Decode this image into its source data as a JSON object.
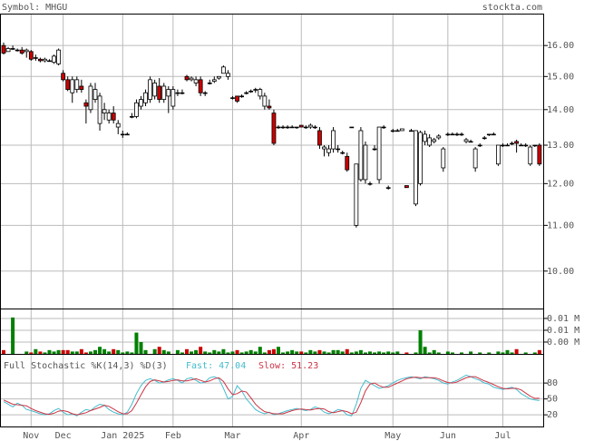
{
  "header": {
    "symbol": "Symbol: MHGU",
    "site": "stockta.com"
  },
  "chart_data": [
    {
      "type": "candlestick",
      "log_scale": true,
      "grid": true,
      "up_color": "#ffffff",
      "down_color": "#cc0000",
      "ylim": [
        9.25,
        17.1
      ],
      "yticks": [
        {
          "value": 10,
          "label": "10.00"
        },
        {
          "value": 11,
          "label": "11.00"
        },
        {
          "value": 12,
          "label": "12.00"
        },
        {
          "value": 13,
          "label": "13.00"
        },
        {
          "value": 14,
          "label": "14.00"
        },
        {
          "value": 15,
          "label": "15.00"
        },
        {
          "value": 16,
          "label": "16.00"
        }
      ],
      "categories": [
        null,
        null,
        null,
        null,
        null,
        null,
        "Nov",
        null,
        null,
        null,
        null,
        null,
        null,
        "Dec",
        null,
        null,
        null,
        null,
        null,
        null,
        null,
        null,
        null,
        null,
        null,
        null,
        "Jan 2025",
        null,
        null,
        null,
        null,
        null,
        null,
        null,
        null,
        null,
        null,
        "Feb",
        null,
        null,
        null,
        null,
        null,
        null,
        null,
        null,
        null,
        null,
        null,
        null,
        "Mar",
        null,
        null,
        null,
        null,
        null,
        null,
        null,
        null,
        null,
        null,
        null,
        null,
        null,
        null,
        "Apr",
        null,
        null,
        null,
        null,
        null,
        null,
        null,
        null,
        null,
        null,
        null,
        null,
        null,
        null,
        null,
        null,
        null,
        null,
        null,
        "May",
        null,
        null,
        null,
        null,
        null,
        null,
        null,
        null,
        null,
        null,
        null,
        "Jun",
        null,
        null,
        null,
        null,
        null,
        null,
        null,
        null,
        null,
        null,
        null,
        "Jul",
        null,
        null,
        null,
        null,
        null,
        null,
        null,
        null
      ],
      "open": [
        16.0,
        15.8,
        15.9,
        15.85,
        15.85,
        15.8,
        15.8,
        15.6,
        15.55,
        15.5,
        15.5,
        15.45,
        15.4,
        15.1,
        14.9,
        14.5,
        14.6,
        14.7,
        14.2,
        14.0,
        14.3,
        13.6,
        13.9,
        13.7,
        13.9,
        13.5,
        13.3,
        13.3,
        13.8,
        13.8,
        14.1,
        14.2,
        14.3,
        14.4,
        14.7,
        14.3,
        14.4,
        14.1,
        14.5,
        14.5,
        15.0,
        14.9,
        14.8,
        14.9,
        14.5,
        14.8,
        14.85,
        14.95,
        15.1,
        15.0,
        14.35,
        14.4,
        14.4,
        14.5,
        14.55,
        14.6,
        14.4,
        14.1,
        14.1,
        13.9,
        13.5,
        13.5,
        13.5,
        13.5,
        13.5,
        13.55,
        13.5,
        13.5,
        13.5,
        13.4,
        12.9,
        12.8,
        12.9,
        12.9,
        12.8,
        12.7,
        13.5,
        11.0,
        12.1,
        12.1,
        12.0,
        12.9,
        12.1,
        13.5,
        11.9,
        13.4,
        13.4,
        13.4,
        11.95,
        13.4,
        11.5,
        12.0,
        13.1,
        13.0,
        13.1,
        13.2,
        12.4,
        13.3,
        13.3,
        13.3,
        13.3,
        13.1,
        13.1,
        12.4,
        13.0,
        13.2,
        13.3,
        13.3,
        12.5,
        13.0,
        13.0,
        13.05,
        13.1,
        13.0,
        13.0,
        12.5,
        13.0,
        13.0
      ],
      "high": [
        16.1,
        15.95,
        16.0,
        15.9,
        15.95,
        15.9,
        15.85,
        15.7,
        15.6,
        15.6,
        15.55,
        15.7,
        15.9,
        15.2,
        15.0,
        15.0,
        15.0,
        14.9,
        14.3,
        14.8,
        14.8,
        14.5,
        14.2,
        14.0,
        14.1,
        13.7,
        13.4,
        13.35,
        13.9,
        14.3,
        14.4,
        14.6,
        15.0,
        14.9,
        14.95,
        14.8,
        14.7,
        14.7,
        14.6,
        14.6,
        15.05,
        15.0,
        15.0,
        15.0,
        14.55,
        14.9,
        15.0,
        15.0,
        15.35,
        15.2,
        14.4,
        14.4,
        14.45,
        14.55,
        14.6,
        14.65,
        14.65,
        14.5,
        14.3,
        14.0,
        13.55,
        13.55,
        13.55,
        13.55,
        13.5,
        13.55,
        13.55,
        13.6,
        13.55,
        13.5,
        13.0,
        13.0,
        13.5,
        13.0,
        12.85,
        12.8,
        13.5,
        12.5,
        13.5,
        13.1,
        12.05,
        13.0,
        13.5,
        13.55,
        11.95,
        13.45,
        13.45,
        13.45,
        11.95,
        13.45,
        13.4,
        13.4,
        13.4,
        13.3,
        13.2,
        13.3,
        12.95,
        13.35,
        13.35,
        13.35,
        13.35,
        13.2,
        13.15,
        12.95,
        13.05,
        13.25,
        13.3,
        13.35,
        13.0,
        13.05,
        13.05,
        13.1,
        13.15,
        13.05,
        13.05,
        13.0,
        13.0,
        13.05
      ],
      "low": [
        15.7,
        15.8,
        15.85,
        15.8,
        15.7,
        15.6,
        15.5,
        15.5,
        15.45,
        15.45,
        15.5,
        15.4,
        15.35,
        14.85,
        14.55,
        14.2,
        14.5,
        14.5,
        13.6,
        13.9,
        14.2,
        13.4,
        13.7,
        13.6,
        13.6,
        13.3,
        13.2,
        13.3,
        13.75,
        13.75,
        14.0,
        14.1,
        14.2,
        14.3,
        14.2,
        14.2,
        13.9,
        14.0,
        14.4,
        14.45,
        14.85,
        14.85,
        14.7,
        14.4,
        14.4,
        14.75,
        14.8,
        14.9,
        15.1,
        14.9,
        14.3,
        14.2,
        14.35,
        14.45,
        14.5,
        14.5,
        14.3,
        14.0,
        14.0,
        13.0,
        13.45,
        13.45,
        13.45,
        13.5,
        13.45,
        13.5,
        13.45,
        13.45,
        13.45,
        12.9,
        12.7,
        12.7,
        12.8,
        12.8,
        12.75,
        12.3,
        13.5,
        10.95,
        12.05,
        12.0,
        11.95,
        12.85,
        12.0,
        13.45,
        11.85,
        13.35,
        13.4,
        13.4,
        11.9,
        13.4,
        11.45,
        11.95,
        13.0,
        12.95,
        13.05,
        13.15,
        12.3,
        13.25,
        13.3,
        13.25,
        13.25,
        13.05,
        13.1,
        12.3,
        12.95,
        13.15,
        13.25,
        13.3,
        12.45,
        12.95,
        13.0,
        13.0,
        12.8,
        13.0,
        12.95,
        12.45,
        12.95,
        12.45
      ],
      "close": [
        15.75,
        15.9,
        15.9,
        15.85,
        15.75,
        15.85,
        15.55,
        15.6,
        15.5,
        15.55,
        15.5,
        15.65,
        15.85,
        14.9,
        14.6,
        14.9,
        14.9,
        14.6,
        14.1,
        14.7,
        14.6,
        14.4,
        14.0,
        13.9,
        13.7,
        13.6,
        13.3,
        13.3,
        13.8,
        14.2,
        14.3,
        14.5,
        14.9,
        14.8,
        14.3,
        14.7,
        14.6,
        14.6,
        14.5,
        14.5,
        14.9,
        14.95,
        14.9,
        14.5,
        14.5,
        14.8,
        14.9,
        15.0,
        15.3,
        15.1,
        14.35,
        14.25,
        14.4,
        14.5,
        14.55,
        14.6,
        14.6,
        14.4,
        14.05,
        13.05,
        13.5,
        13.5,
        13.5,
        13.5,
        13.5,
        13.5,
        13.5,
        13.55,
        13.5,
        13.0,
        12.95,
        12.9,
        13.4,
        12.9,
        12.8,
        12.35,
        13.5,
        12.5,
        13.4,
        13.0,
        12.0,
        12.9,
        13.5,
        13.5,
        11.9,
        13.4,
        13.4,
        13.45,
        11.9,
        13.4,
        13.4,
        13.35,
        13.3,
        13.2,
        13.15,
        13.25,
        12.9,
        13.3,
        13.3,
        13.3,
        13.3,
        13.15,
        13.1,
        12.9,
        13.0,
        13.2,
        13.3,
        13.3,
        13.0,
        13.0,
        13.0,
        13.05,
        13.05,
        13.0,
        13.0,
        12.95,
        13.0,
        12.5
      ]
    },
    {
      "type": "bar",
      "up_color": "#008000",
      "down_color": "#cc0000",
      "grid": true,
      "ylim": [
        0,
        0.0096
      ],
      "yticks": [
        {
          "value": 0.0025,
          "label": "0.00 M"
        },
        {
          "value": 0.005,
          "label": "0.01 M"
        },
        {
          "value": 0.0075,
          "label": "0.01 M"
        }
      ],
      "values": [
        0.0008,
        0,
        0.0077,
        0,
        0,
        0.0005,
        0.0003,
        0.001,
        0.0005,
        0.0003,
        0.0008,
        0.0005,
        0.0008,
        0.0008,
        0.0008,
        0.0005,
        0.0005,
        0.001,
        0.0003,
        0.0005,
        0.0008,
        0.0015,
        0.001,
        0.0005,
        0.001,
        0.0008,
        0.0003,
        0.0005,
        0.0003,
        0.0045,
        0.0025,
        0.0008,
        0,
        0.001,
        0.0015,
        0.0008,
        0.0005,
        0,
        0.0008,
        0.0003,
        0.001,
        0.0005,
        0.0008,
        0.0015,
        0.0005,
        0.0003,
        0.0008,
        0.0005,
        0.001,
        0.0003,
        0.0005,
        0.0008,
        0.0003,
        0.0005,
        0.0008,
        0.0005,
        0.0015,
        0.0003,
        0.0008,
        0.001,
        0.0015,
        0.0003,
        0.0005,
        0.0008,
        0.0005,
        0.0005,
        0.0003,
        0.0008,
        0.0005,
        0.0008,
        0.0005,
        0.0003,
        0.0008,
        0.0008,
        0.0005,
        0.001,
        0.0003,
        0.0005,
        0.0008,
        0.0003,
        0.0005,
        0.0003,
        0.0005,
        0.0003,
        0.0005,
        0.0003,
        0.0005,
        0,
        0.0003,
        0,
        0.0003,
        0.005,
        0.0015,
        0.0003,
        0.0008,
        0.0003,
        0,
        0.0005,
        0.0003,
        0,
        0.0003,
        0,
        0.0005,
        0,
        0.0003,
        0,
        0.0003,
        0,
        0.0005,
        0.0003,
        0.0008,
        0.0003,
        0.001,
        0,
        0.0003,
        0,
        0.0003,
        0.0008
      ]
    },
    {
      "type": "line",
      "title": "Full Stochastic %K(14,3) %D(3)",
      "grid": true,
      "ylim": [
        -2,
        135
      ],
      "yticks": [
        20,
        50,
        80
      ],
      "series": [
        {
          "name": "Fast: 47.04",
          "color": "#44bbcc",
          "values": [
            45,
            40,
            35,
            42,
            38,
            30,
            28,
            25,
            22,
            20,
            22,
            28,
            32,
            25,
            20,
            22,
            18,
            25,
            30,
            28,
            35,
            40,
            38,
            30,
            25,
            22,
            20,
            25,
            40,
            60,
            75,
            85,
            88,
            85,
            80,
            82,
            86,
            88,
            85,
            80,
            88,
            90,
            85,
            80,
            82,
            90,
            92,
            88,
            70,
            50,
            55,
            75,
            65,
            50,
            40,
            30,
            25,
            22,
            25,
            20,
            22,
            25,
            28,
            30,
            32,
            30,
            28,
            30,
            35,
            32,
            25,
            22,
            25,
            30,
            28,
            20,
            18,
            40,
            70,
            85,
            80,
            75,
            70,
            72,
            75,
            80,
            85,
            88,
            90,
            92,
            90,
            88,
            92,
            90,
            88,
            85,
            80,
            78,
            82,
            85,
            90,
            95,
            92,
            88,
            85,
            80,
            78,
            72,
            70,
            68,
            70,
            72,
            68,
            60,
            55,
            50,
            48,
            47.04
          ]
        },
        {
          "name": "Slow: 51.23",
          "color": "#cc3344",
          "values": [
            48,
            44,
            40,
            39,
            38,
            37,
            32,
            28,
            25,
            22,
            21,
            23,
            27,
            28,
            26,
            22,
            20,
            22,
            24,
            28,
            31,
            34,
            38,
            36,
            31,
            26,
            22,
            22,
            28,
            42,
            58,
            73,
            83,
            86,
            84,
            82,
            83,
            85,
            86,
            84,
            84,
            86,
            88,
            85,
            82,
            84,
            88,
            90,
            83,
            69,
            58,
            60,
            65,
            63,
            52,
            40,
            32,
            26,
            24,
            22,
            22,
            22,
            25,
            28,
            30,
            31,
            30,
            29,
            31,
            32,
            31,
            26,
            24,
            26,
            28,
            26,
            22,
            25,
            43,
            65,
            78,
            80,
            75,
            72,
            72,
            76,
            80,
            84,
            88,
            90,
            91,
            90,
            90,
            90,
            90,
            88,
            84,
            81,
            80,
            82,
            86,
            90,
            92,
            92,
            88,
            84,
            81,
            77,
            73,
            70,
            69,
            70,
            70,
            67,
            61,
            55,
            51,
            51.23
          ]
        }
      ]
    }
  ]
}
